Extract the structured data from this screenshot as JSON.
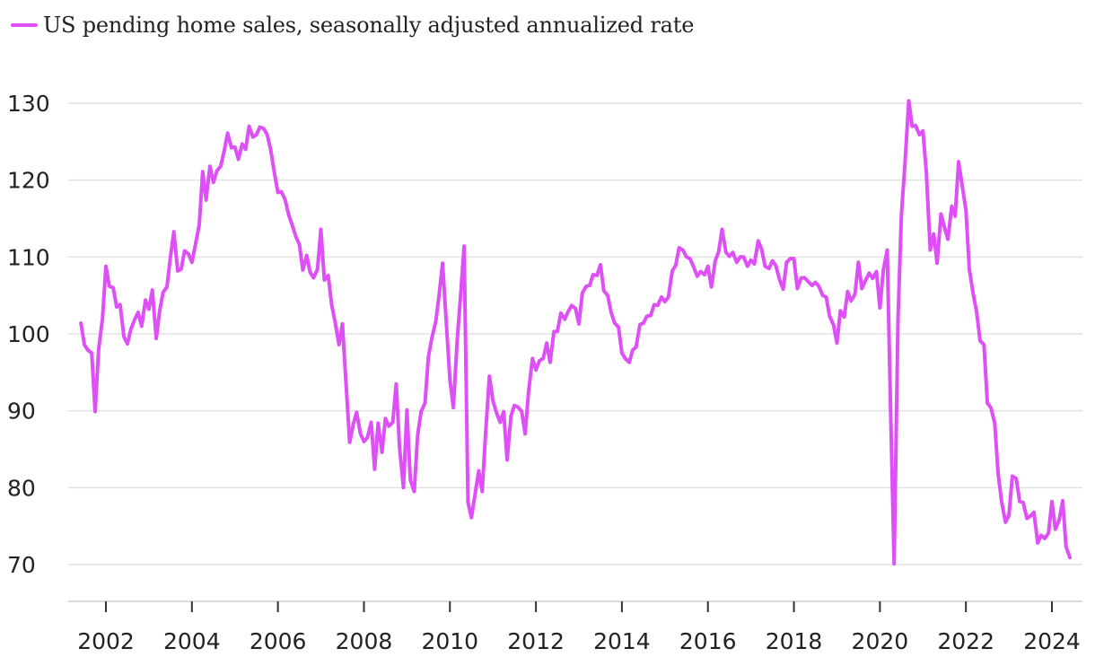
{
  "legend": {
    "label": "US pending home sales, seasonally adjusted annualized rate",
    "color": "#df4ff7"
  },
  "chart_data": {
    "type": "line",
    "ylim": [
      70,
      130
    ],
    "yticks": [
      70,
      80,
      90,
      100,
      110,
      120,
      130
    ],
    "xlim": [
      2001.3,
      2024.75
    ],
    "xticks": [
      2002,
      2004,
      2006,
      2008,
      2010,
      2012,
      2014,
      2016,
      2018,
      2020,
      2022,
      2024
    ],
    "grid": true,
    "legend_position": "top-left",
    "series": [
      {
        "name": "US pending home sales, seasonally adjusted annualized rate",
        "color": "#df4ff7",
        "points": [
          [
            2001.42,
            101.4
          ],
          [
            2001.5,
            98.6
          ],
          [
            2001.58,
            97.9
          ],
          [
            2001.67,
            97.5
          ],
          [
            2001.75,
            89.9
          ],
          [
            2001.83,
            98.0
          ],
          [
            2001.92,
            102.0
          ],
          [
            2002.0,
            108.8
          ],
          [
            2002.08,
            106.2
          ],
          [
            2002.17,
            106.0
          ],
          [
            2002.25,
            103.5
          ],
          [
            2002.33,
            103.8
          ],
          [
            2002.42,
            99.6
          ],
          [
            2002.5,
            98.7
          ],
          [
            2002.58,
            100.6
          ],
          [
            2002.67,
            101.9
          ],
          [
            2002.75,
            102.8
          ],
          [
            2002.83,
            101.0
          ],
          [
            2002.92,
            104.4
          ],
          [
            2003.0,
            103.2
          ],
          [
            2003.08,
            105.7
          ],
          [
            2003.17,
            99.4
          ],
          [
            2003.25,
            103.0
          ],
          [
            2003.33,
            105.4
          ],
          [
            2003.42,
            106.1
          ],
          [
            2003.5,
            110.0
          ],
          [
            2003.58,
            113.3
          ],
          [
            2003.67,
            108.2
          ],
          [
            2003.75,
            108.4
          ],
          [
            2003.83,
            110.8
          ],
          [
            2003.92,
            110.4
          ],
          [
            2004.0,
            109.3
          ],
          [
            2004.08,
            111.6
          ],
          [
            2004.17,
            114.2
          ],
          [
            2004.25,
            121.1
          ],
          [
            2004.33,
            117.4
          ],
          [
            2004.42,
            121.8
          ],
          [
            2004.5,
            119.7
          ],
          [
            2004.58,
            121.2
          ],
          [
            2004.67,
            121.8
          ],
          [
            2004.75,
            123.8
          ],
          [
            2004.83,
            126.1
          ],
          [
            2004.92,
            124.2
          ],
          [
            2005.0,
            124.3
          ],
          [
            2005.08,
            122.7
          ],
          [
            2005.17,
            124.7
          ],
          [
            2005.25,
            124.0
          ],
          [
            2005.33,
            127.0
          ],
          [
            2005.42,
            125.6
          ],
          [
            2005.5,
            125.9
          ],
          [
            2005.58,
            126.9
          ],
          [
            2005.67,
            126.7
          ],
          [
            2005.75,
            125.9
          ],
          [
            2005.83,
            124.0
          ],
          [
            2005.92,
            120.9
          ],
          [
            2006.0,
            118.4
          ],
          [
            2006.08,
            118.5
          ],
          [
            2006.17,
            117.4
          ],
          [
            2006.25,
            115.5
          ],
          [
            2006.33,
            114.2
          ],
          [
            2006.42,
            112.6
          ],
          [
            2006.5,
            111.6
          ],
          [
            2006.58,
            108.3
          ],
          [
            2006.67,
            110.2
          ],
          [
            2006.75,
            108.0
          ],
          [
            2006.83,
            107.3
          ],
          [
            2006.92,
            108.4
          ],
          [
            2007.0,
            113.6
          ],
          [
            2007.08,
            107.0
          ],
          [
            2007.17,
            107.6
          ],
          [
            2007.25,
            103.8
          ],
          [
            2007.33,
            101.5
          ],
          [
            2007.42,
            98.6
          ],
          [
            2007.5,
            101.3
          ],
          [
            2007.58,
            94.0
          ],
          [
            2007.67,
            85.9
          ],
          [
            2007.75,
            88.2
          ],
          [
            2007.83,
            89.8
          ],
          [
            2007.92,
            87.0
          ],
          [
            2008.0,
            86.0
          ],
          [
            2008.08,
            86.5
          ],
          [
            2008.17,
            88.5
          ],
          [
            2008.25,
            82.4
          ],
          [
            2008.33,
            88.4
          ],
          [
            2008.42,
            84.6
          ],
          [
            2008.5,
            89.0
          ],
          [
            2008.58,
            88.0
          ],
          [
            2008.67,
            88.5
          ],
          [
            2008.75,
            93.5
          ],
          [
            2008.83,
            85.2
          ],
          [
            2008.92,
            80.0
          ],
          [
            2009.0,
            90.1
          ],
          [
            2009.08,
            81.0
          ],
          [
            2009.17,
            79.5
          ],
          [
            2009.25,
            86.8
          ],
          [
            2009.33,
            89.9
          ],
          [
            2009.42,
            91.0
          ],
          [
            2009.5,
            97.0
          ],
          [
            2009.58,
            99.5
          ],
          [
            2009.67,
            101.6
          ],
          [
            2009.75,
            105.1
          ],
          [
            2009.83,
            109.2
          ],
          [
            2009.92,
            101.2
          ],
          [
            2010.0,
            94.0
          ],
          [
            2010.08,
            90.4
          ],
          [
            2010.17,
            99.2
          ],
          [
            2010.25,
            105.2
          ],
          [
            2010.33,
            111.4
          ],
          [
            2010.42,
            78.1
          ],
          [
            2010.5,
            76.1
          ],
          [
            2010.58,
            79.0
          ],
          [
            2010.67,
            82.2
          ],
          [
            2010.75,
            79.5
          ],
          [
            2010.83,
            87.0
          ],
          [
            2010.92,
            94.5
          ],
          [
            2011.0,
            91.3
          ],
          [
            2011.08,
            89.8
          ],
          [
            2011.17,
            88.5
          ],
          [
            2011.25,
            89.9
          ],
          [
            2011.33,
            83.6
          ],
          [
            2011.42,
            89.3
          ],
          [
            2011.5,
            90.7
          ],
          [
            2011.58,
            90.5
          ],
          [
            2011.67,
            89.9
          ],
          [
            2011.75,
            87.0
          ],
          [
            2011.83,
            92.5
          ],
          [
            2011.92,
            96.8
          ],
          [
            2012.0,
            95.3
          ],
          [
            2012.08,
            96.5
          ],
          [
            2012.17,
            96.8
          ],
          [
            2012.25,
            98.8
          ],
          [
            2012.33,
            96.3
          ],
          [
            2012.42,
            100.3
          ],
          [
            2012.5,
            100.3
          ],
          [
            2012.58,
            102.7
          ],
          [
            2012.67,
            101.9
          ],
          [
            2012.75,
            102.9
          ],
          [
            2012.83,
            103.7
          ],
          [
            2012.92,
            103.3
          ],
          [
            2013.0,
            101.3
          ],
          [
            2013.08,
            105.3
          ],
          [
            2013.17,
            106.2
          ],
          [
            2013.25,
            106.3
          ],
          [
            2013.33,
            107.7
          ],
          [
            2013.42,
            107.6
          ],
          [
            2013.5,
            109.0
          ],
          [
            2013.58,
            105.6
          ],
          [
            2013.67,
            105.0
          ],
          [
            2013.75,
            102.8
          ],
          [
            2013.83,
            101.4
          ],
          [
            2013.92,
            100.9
          ],
          [
            2014.0,
            97.5
          ],
          [
            2014.08,
            96.8
          ],
          [
            2014.17,
            96.3
          ],
          [
            2014.25,
            97.9
          ],
          [
            2014.33,
            98.3
          ],
          [
            2014.42,
            101.2
          ],
          [
            2014.5,
            101.4
          ],
          [
            2014.58,
            102.3
          ],
          [
            2014.67,
            102.4
          ],
          [
            2014.75,
            103.8
          ],
          [
            2014.83,
            103.7
          ],
          [
            2014.92,
            104.8
          ],
          [
            2015.0,
            104.2
          ],
          [
            2015.08,
            104.8
          ],
          [
            2015.17,
            108.2
          ],
          [
            2015.25,
            108.9
          ],
          [
            2015.33,
            111.2
          ],
          [
            2015.42,
            110.9
          ],
          [
            2015.5,
            110.0
          ],
          [
            2015.58,
            109.8
          ],
          [
            2015.67,
            108.7
          ],
          [
            2015.75,
            107.5
          ],
          [
            2015.83,
            108.1
          ],
          [
            2015.92,
            107.7
          ],
          [
            2016.0,
            108.8
          ],
          [
            2016.08,
            106.1
          ],
          [
            2016.17,
            109.5
          ],
          [
            2016.25,
            110.7
          ],
          [
            2016.33,
            113.6
          ],
          [
            2016.42,
            110.6
          ],
          [
            2016.5,
            110.1
          ],
          [
            2016.58,
            110.6
          ],
          [
            2016.67,
            109.3
          ],
          [
            2016.75,
            110.0
          ],
          [
            2016.83,
            110.0
          ],
          [
            2016.92,
            108.8
          ],
          [
            2017.0,
            109.6
          ],
          [
            2017.08,
            109.1
          ],
          [
            2017.17,
            112.1
          ],
          [
            2017.25,
            111.0
          ],
          [
            2017.33,
            108.8
          ],
          [
            2017.42,
            108.5
          ],
          [
            2017.5,
            109.5
          ],
          [
            2017.58,
            108.9
          ],
          [
            2017.67,
            107.0
          ],
          [
            2017.75,
            105.8
          ],
          [
            2017.83,
            109.3
          ],
          [
            2017.92,
            109.8
          ],
          [
            2018.0,
            109.8
          ],
          [
            2018.08,
            105.9
          ],
          [
            2018.17,
            107.3
          ],
          [
            2018.25,
            107.3
          ],
          [
            2018.33,
            106.8
          ],
          [
            2018.42,
            106.3
          ],
          [
            2018.5,
            106.7
          ],
          [
            2018.58,
            106.2
          ],
          [
            2018.67,
            105.0
          ],
          [
            2018.75,
            104.8
          ],
          [
            2018.83,
            102.3
          ],
          [
            2018.92,
            101.2
          ],
          [
            2019.0,
            98.8
          ],
          [
            2019.08,
            103.0
          ],
          [
            2019.17,
            102.2
          ],
          [
            2019.25,
            105.5
          ],
          [
            2019.33,
            104.3
          ],
          [
            2019.42,
            105.2
          ],
          [
            2019.5,
            109.3
          ],
          [
            2019.58,
            105.9
          ],
          [
            2019.67,
            107.0
          ],
          [
            2019.75,
            107.9
          ],
          [
            2019.83,
            107.2
          ],
          [
            2019.92,
            108.1
          ],
          [
            2020.0,
            103.4
          ],
          [
            2020.08,
            108.3
          ],
          [
            2020.17,
            110.9
          ],
          [
            2020.25,
            90.0
          ],
          [
            2020.33,
            70.1
          ],
          [
            2020.42,
            101.8
          ],
          [
            2020.5,
            115.5
          ],
          [
            2020.58,
            122.0
          ],
          [
            2020.67,
            130.3
          ],
          [
            2020.75,
            127.0
          ],
          [
            2020.83,
            127.1
          ],
          [
            2020.92,
            125.9
          ],
          [
            2021.0,
            126.4
          ],
          [
            2021.08,
            121.0
          ],
          [
            2021.17,
            110.9
          ],
          [
            2021.25,
            113.0
          ],
          [
            2021.33,
            109.2
          ],
          [
            2021.42,
            115.6
          ],
          [
            2021.5,
            113.9
          ],
          [
            2021.58,
            112.3
          ],
          [
            2021.67,
            116.6
          ],
          [
            2021.75,
            115.3
          ],
          [
            2021.83,
            122.4
          ],
          [
            2021.92,
            119.1
          ],
          [
            2022.0,
            116.1
          ],
          [
            2022.08,
            108.4
          ],
          [
            2022.17,
            105.2
          ],
          [
            2022.25,
            102.8
          ],
          [
            2022.33,
            99.1
          ],
          [
            2022.42,
            98.6
          ],
          [
            2022.5,
            91.0
          ],
          [
            2022.58,
            90.4
          ],
          [
            2022.67,
            88.4
          ],
          [
            2022.75,
            81.8
          ],
          [
            2022.83,
            78.2
          ],
          [
            2022.92,
            75.5
          ],
          [
            2023.0,
            76.4
          ],
          [
            2023.08,
            81.5
          ],
          [
            2023.17,
            81.2
          ],
          [
            2023.25,
            78.2
          ],
          [
            2023.33,
            78.1
          ],
          [
            2023.42,
            76.0
          ],
          [
            2023.5,
            76.3
          ],
          [
            2023.58,
            76.8
          ],
          [
            2023.67,
            72.8
          ],
          [
            2023.75,
            73.8
          ],
          [
            2023.83,
            73.4
          ],
          [
            2023.92,
            74.1
          ],
          [
            2024.0,
            78.2
          ],
          [
            2024.08,
            74.6
          ],
          [
            2024.17,
            75.8
          ],
          [
            2024.25,
            78.3
          ],
          [
            2024.33,
            72.3
          ],
          [
            2024.42,
            70.9
          ]
        ]
      }
    ]
  }
}
